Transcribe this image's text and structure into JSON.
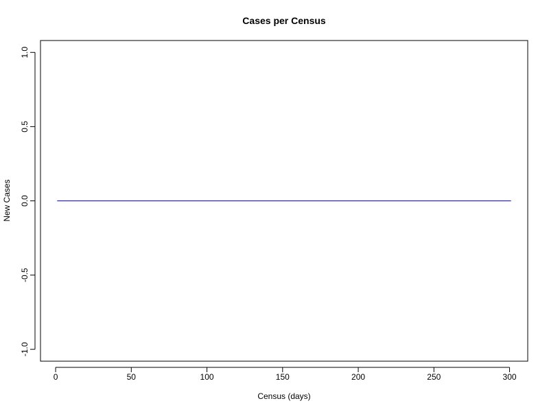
{
  "chart_data": {
    "type": "line",
    "title": "Cases per Census",
    "xlabel": "Census (days)",
    "ylabel": "New Cases",
    "xlim": [
      -10,
      312
    ],
    "ylim": [
      -1.08,
      1.08
    ],
    "x_ticks": [
      0,
      50,
      100,
      150,
      200,
      250,
      300
    ],
    "x_tick_labels": [
      "0",
      "50",
      "100",
      "150",
      "200",
      "250",
      "300"
    ],
    "y_ticks": [
      -1.0,
      -0.5,
      0.0,
      0.5,
      1.0
    ],
    "y_tick_labels": [
      "-1.0",
      "-0.5",
      "0.0",
      "0.5",
      "1.0"
    ],
    "grid": false,
    "series": [
      {
        "name": "New Cases",
        "color": "#0000ff",
        "x": [
          1,
          301
        ],
        "y": [
          0,
          0
        ]
      }
    ]
  }
}
